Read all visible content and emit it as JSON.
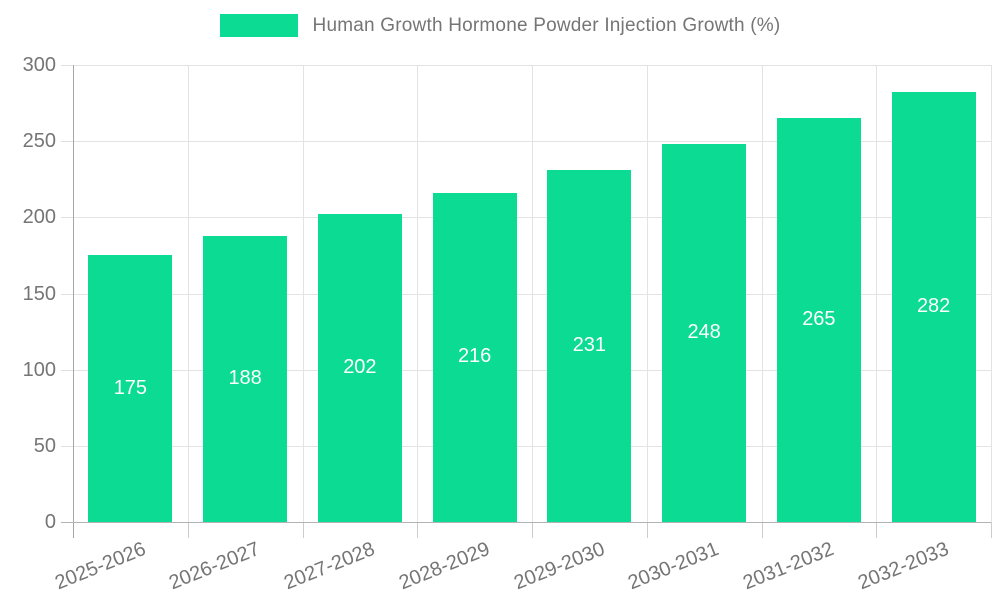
{
  "colors": {
    "bar": "#0bdb93",
    "grid": "#e3e3e3",
    "axis_line": "#a6a6a6",
    "baseline": "#b3b3b3",
    "tick": "#cccccc",
    "tick_label": "#757575",
    "legend_text": "#757575",
    "value_label": "#ffffff",
    "background": "#ffffff"
  },
  "legend": {
    "swatch": "legend-color-swatch"
  },
  "chart_data": {
    "type": "bar",
    "title": "Human Growth Hormone Powder Injection Growth (%)",
    "categories": [
      "2025-2026",
      "2026-2027",
      "2027-2028",
      "2028-2029",
      "2029-2030",
      "2030-2031",
      "2031-2032",
      "2032-2033"
    ],
    "values": [
      175,
      188,
      202,
      216,
      231,
      248,
      265,
      282
    ],
    "xlabel": "",
    "ylabel": "",
    "ylim": [
      0,
      300
    ],
    "yticks": [
      0,
      50,
      100,
      150,
      200,
      250,
      300
    ],
    "grid": true,
    "legend_position": "top-center",
    "bar_value_labels": "centered-white-inside-bars",
    "x_tick_label_rotation_deg": -22
  }
}
